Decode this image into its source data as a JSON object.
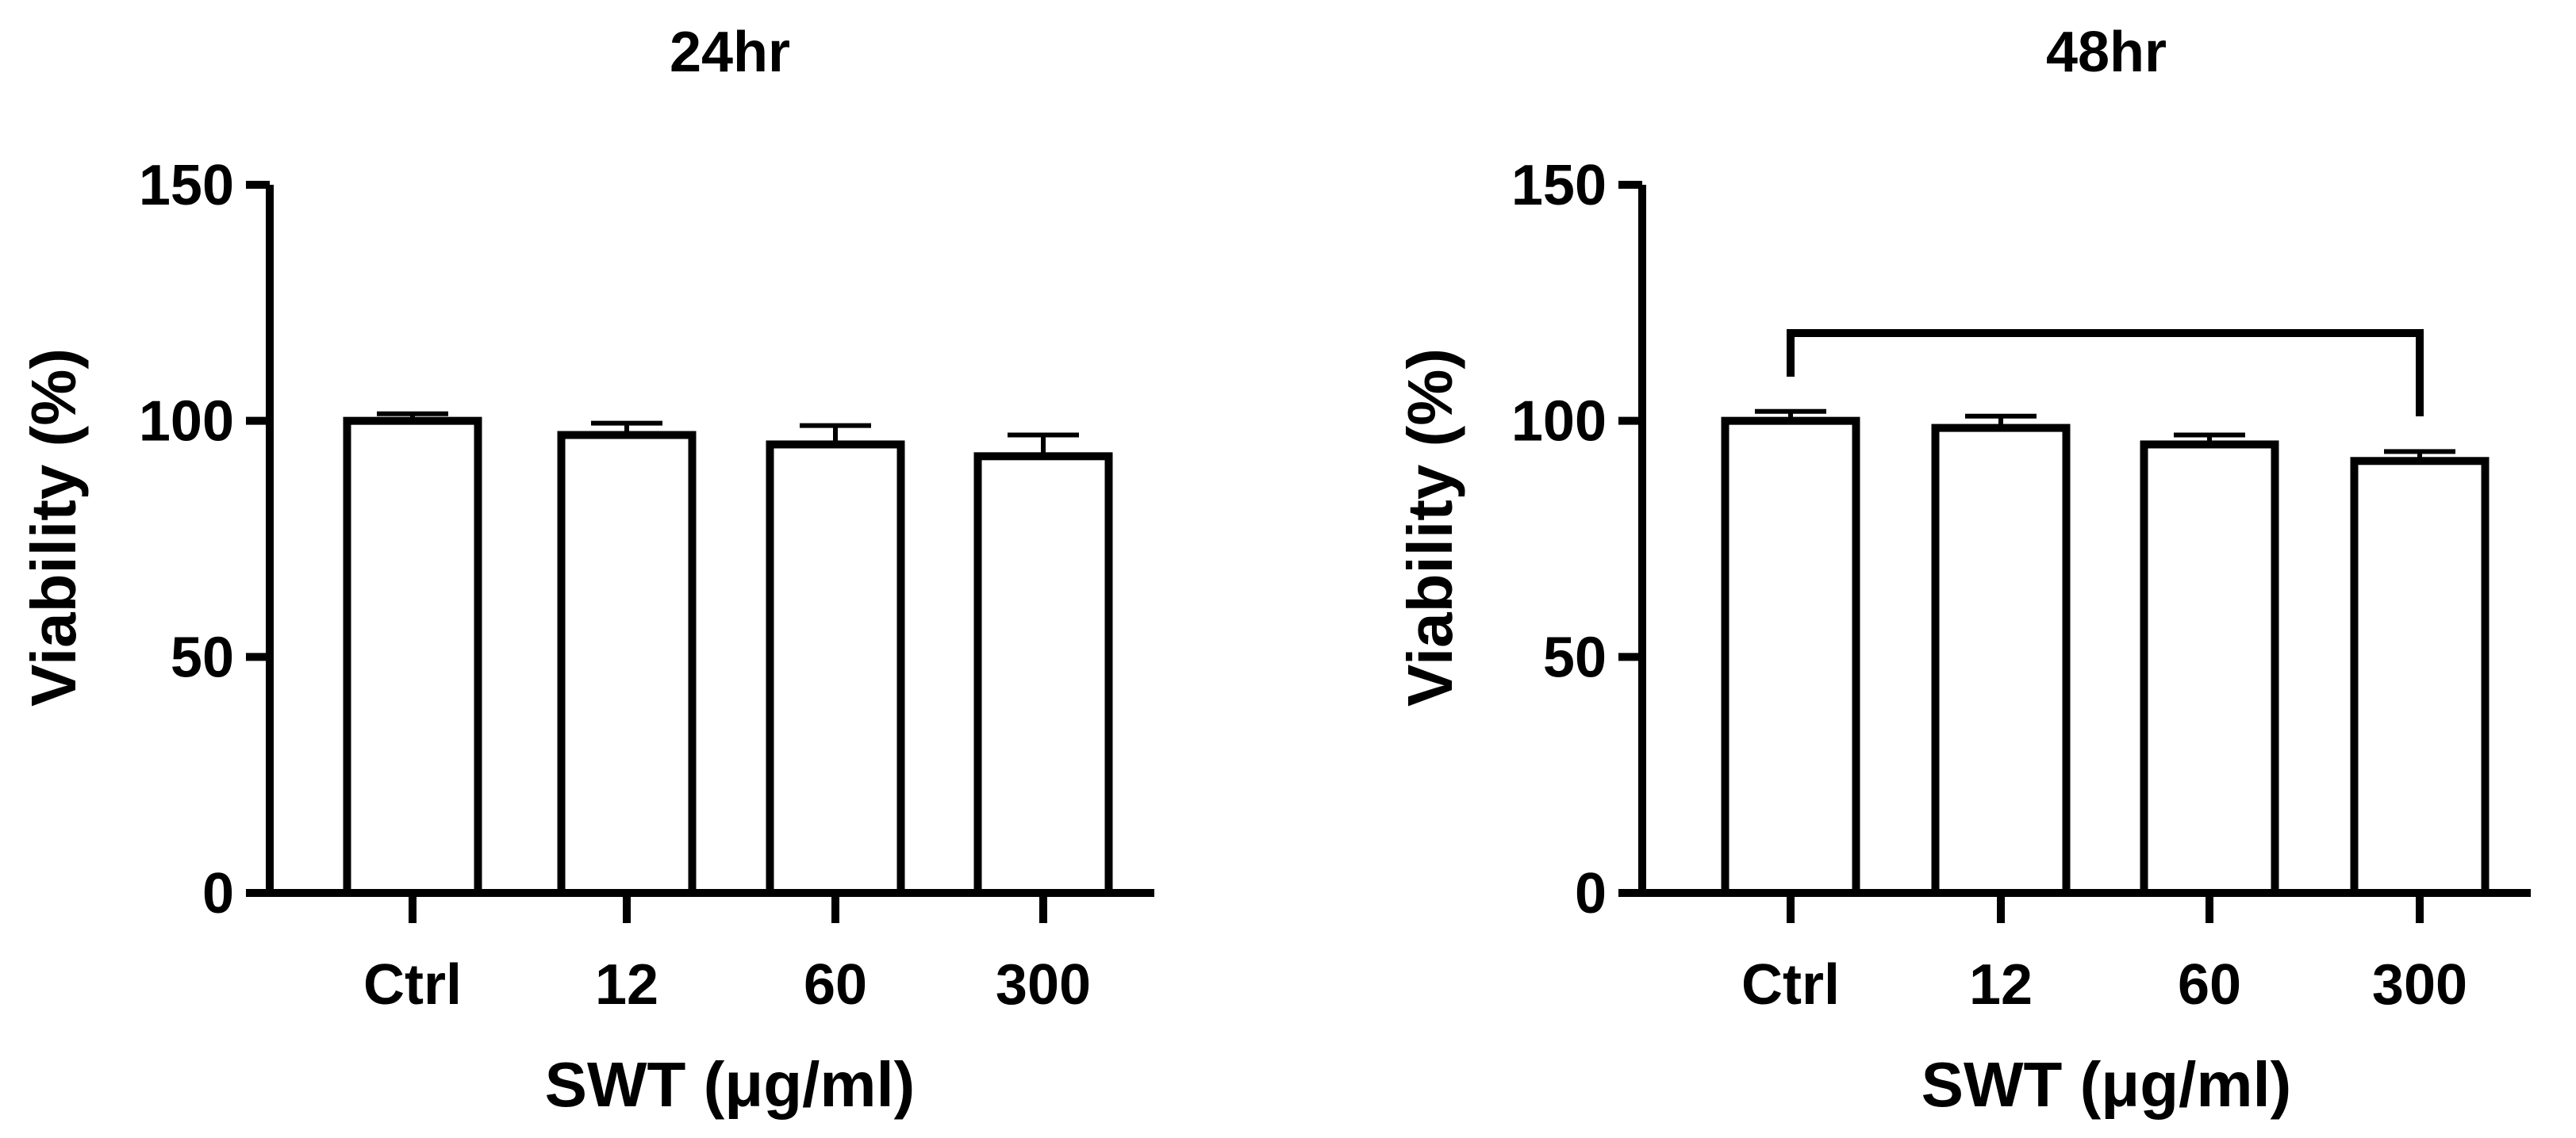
{
  "chart_data": [
    {
      "type": "bar",
      "title": "24hr",
      "categories": [
        "Ctrl",
        "12",
        "60",
        "300"
      ],
      "values": [
        100,
        97,
        95,
        92.5
      ],
      "error": [
        1.5,
        2.5,
        4,
        4.5
      ],
      "xlabel": "SWT (μg/ml)",
      "ylabel": "Viability (%)",
      "ylim": [
        0,
        150
      ],
      "yticks": [
        "0",
        "50",
        "100",
        "150"
      ],
      "significance_brackets": []
    },
    {
      "type": "bar",
      "title": "48hr",
      "categories": [
        "Ctrl",
        "12",
        "60",
        "300"
      ],
      "values": [
        100,
        98.5,
        95,
        91.5
      ],
      "error": [
        2,
        2.5,
        2,
        2
      ],
      "xlabel": "SWT (μg/ml)",
      "ylabel": "Viability (%)",
      "ylim": [
        0,
        150
      ],
      "yticks": [
        "0",
        "50",
        "100",
        "150"
      ],
      "significance_brackets": [
        {
          "from": "Ctrl",
          "to": "300",
          "label": ""
        }
      ]
    }
  ]
}
